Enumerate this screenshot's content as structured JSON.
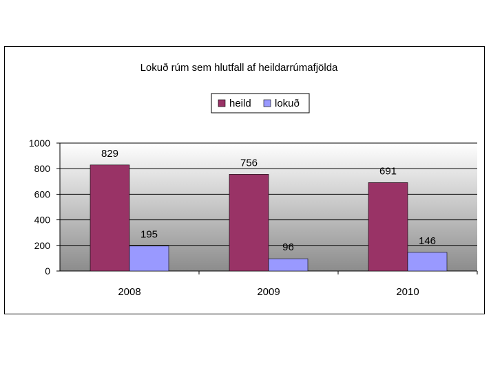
{
  "chart_data": {
    "type": "bar",
    "title": "Lokuð rúm sem hlutfall af heildarrúmafjölda",
    "categories": [
      "2008",
      "2009",
      "2010"
    ],
    "series": [
      {
        "name": "heild",
        "values": [
          829,
          756,
          691
        ],
        "color": "#993366"
      },
      {
        "name": "lokuð",
        "values": [
          195,
          96,
          146
        ],
        "color": "#9999ff"
      }
    ],
    "ylim": [
      0,
      1000
    ],
    "yticks": [
      0,
      200,
      400,
      600,
      800,
      1000
    ],
    "grid": true,
    "legend": "top-center",
    "xlabel": "",
    "ylabel": ""
  }
}
